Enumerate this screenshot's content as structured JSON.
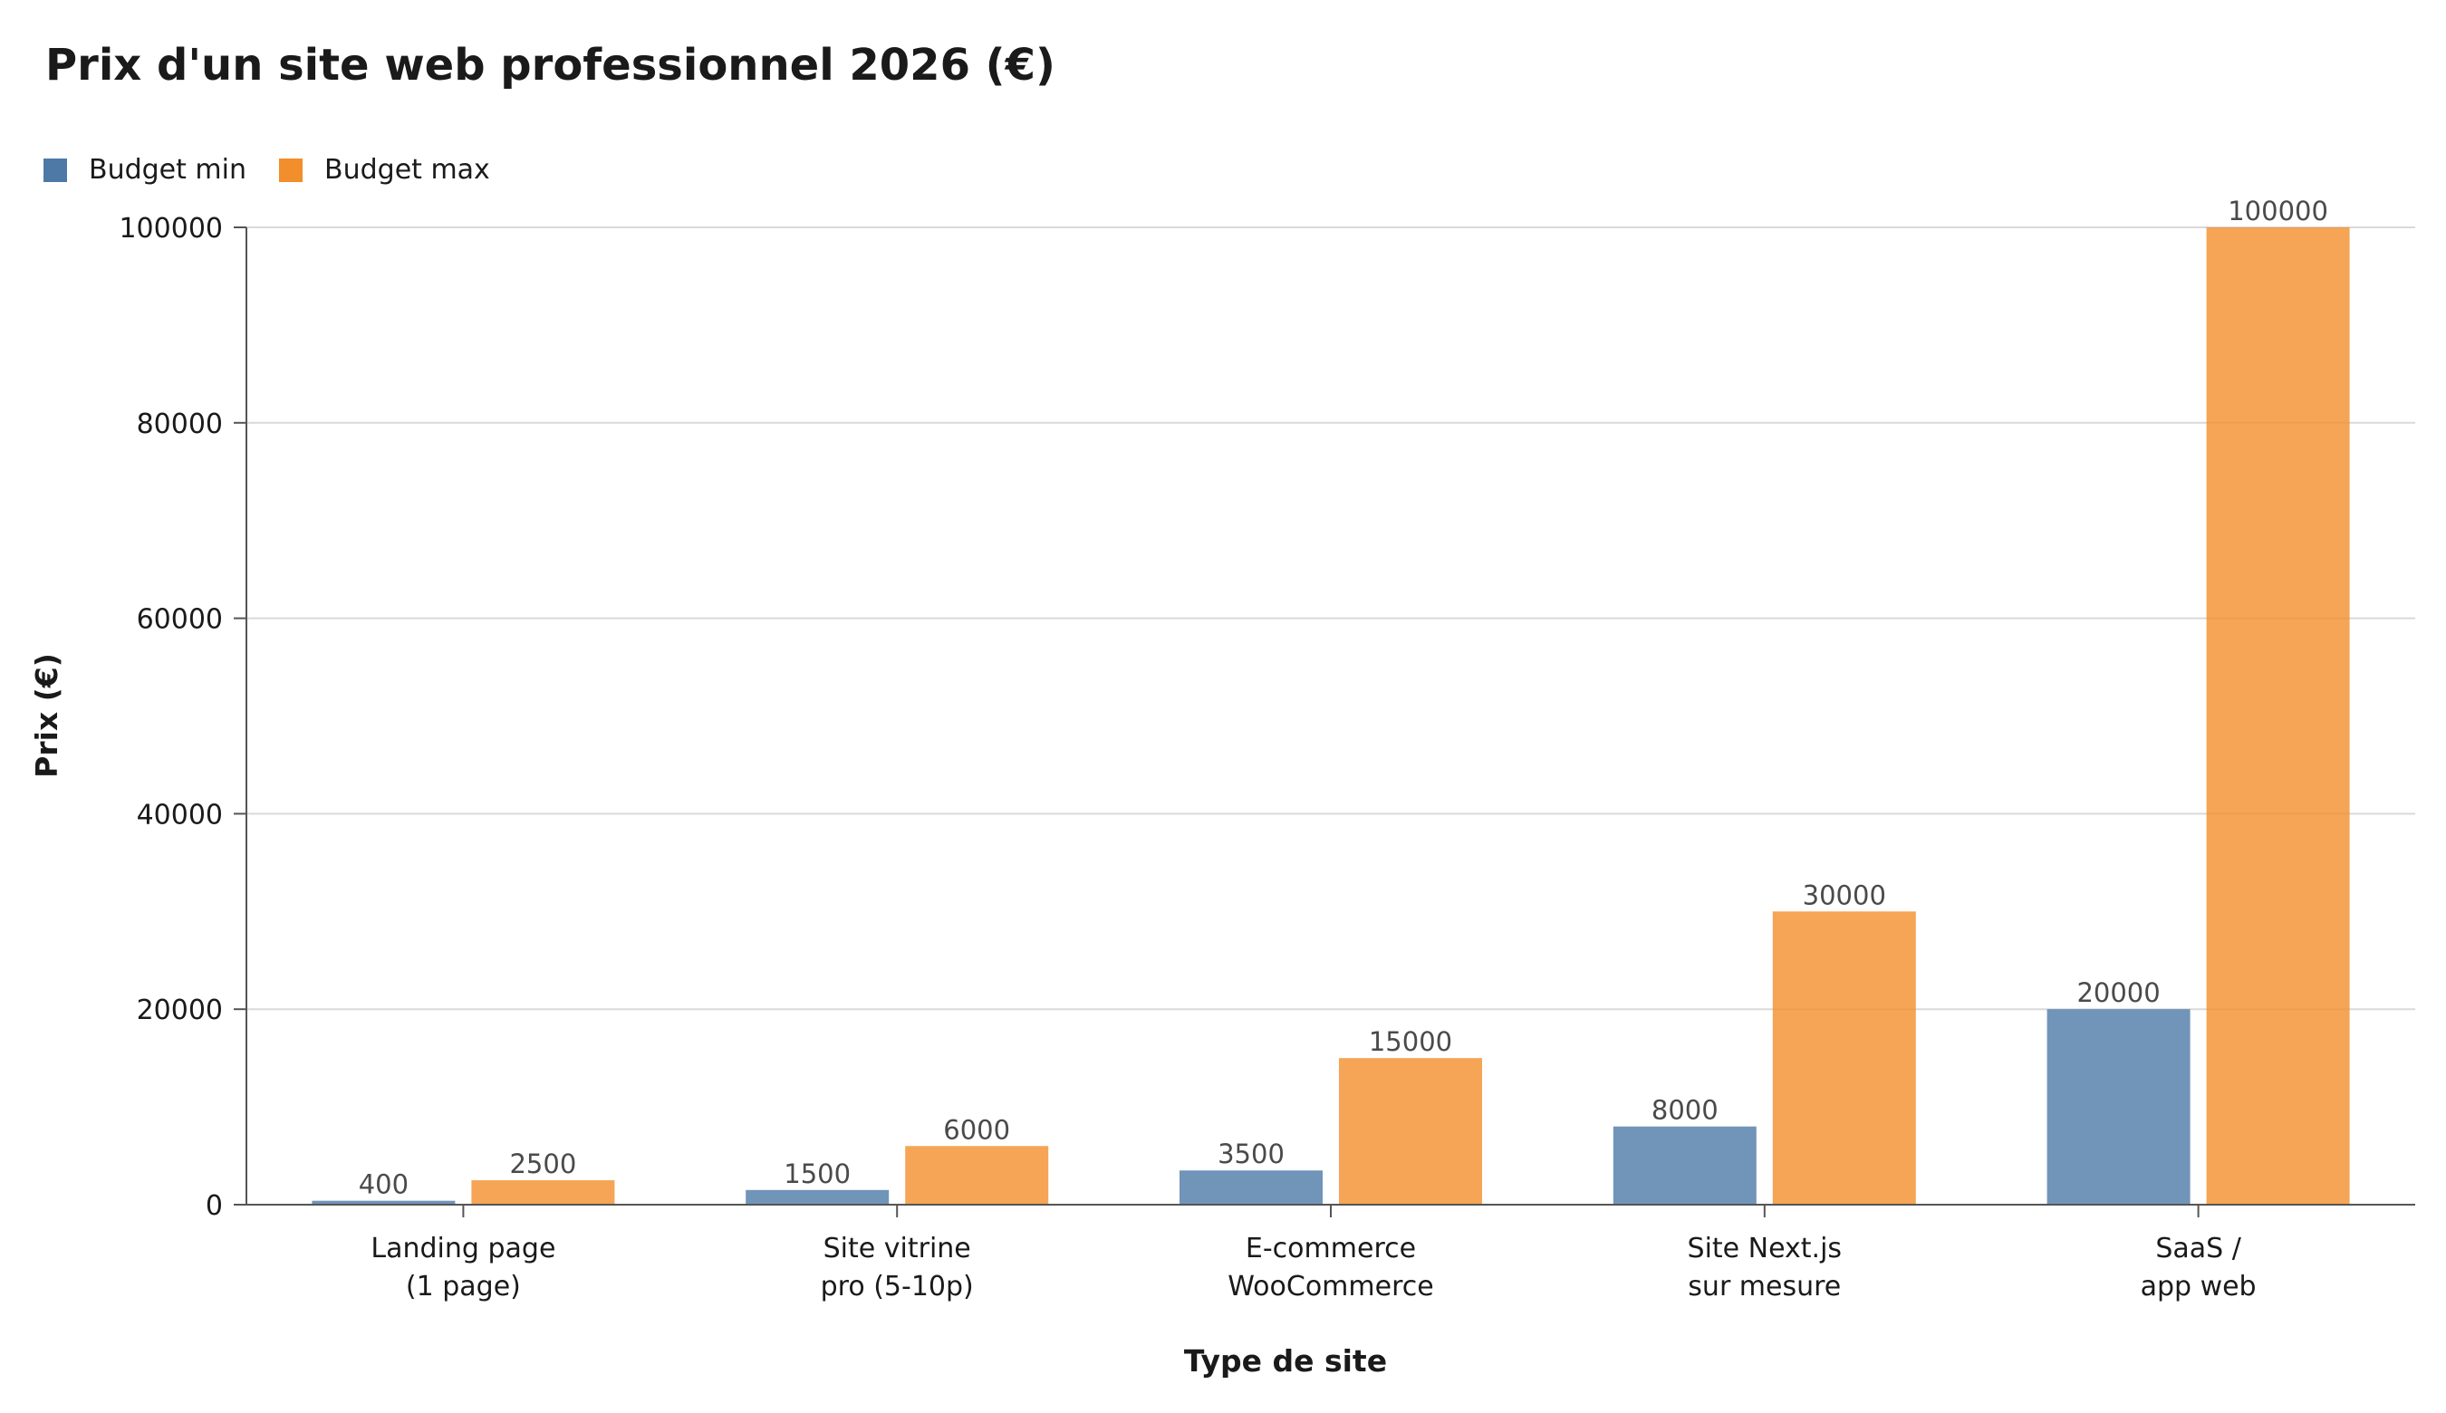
{
  "chart_data": {
    "type": "bar",
    "title": "Prix d'un site web professionnel 2026 (€)",
    "xlabel": "Type de site",
    "ylabel": "Prix (€)",
    "categories": [
      [
        "Landing page",
        "(1 page)"
      ],
      [
        "Site vitrine",
        "pro (5-10p)"
      ],
      [
        "E-commerce",
        "WooCommerce"
      ],
      [
        "Site Next.js",
        "sur mesure"
      ],
      [
        "SaaS /",
        "app web"
      ]
    ],
    "series": [
      {
        "name": "Budget min",
        "color": "#4e79a7",
        "values": [
          400,
          1500,
          3500,
          8000,
          20000
        ]
      },
      {
        "name": "Budget max",
        "color": "#f28e2b",
        "values": [
          2500,
          6000,
          15000,
          30000,
          100000
        ]
      }
    ],
    "ylim": [
      0,
      100000
    ],
    "yticks": [
      0,
      20000,
      40000,
      60000,
      80000,
      100000
    ],
    "grid": true,
    "legend_position": "top-left"
  }
}
